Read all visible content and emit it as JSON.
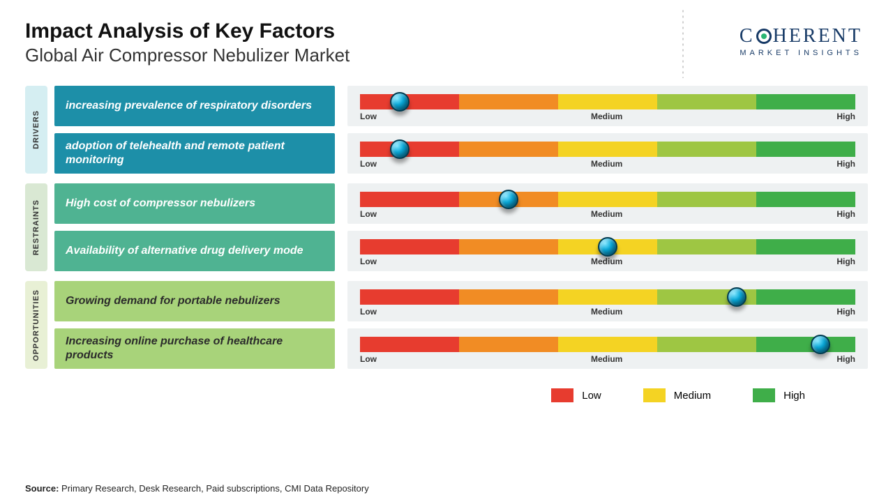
{
  "header": {
    "title": "Impact Analysis of Key Factors",
    "subtitle": "Global Air Compressor Nebulizer Market"
  },
  "logo": {
    "main": "C HERENT",
    "sub": "MARKET INSIGHTS"
  },
  "scale": {
    "low": "Low",
    "medium": "Medium",
    "high": "High"
  },
  "gradient_colors": [
    "#e73c2f",
    "#f18c24",
    "#f4d323",
    "#9ec643",
    "#3fae49"
  ],
  "group_tab_colors": {
    "drivers": "#d5eef2",
    "restraints": "#d9e8d3",
    "opportunities": "#e8f0d5"
  },
  "groups": [
    {
      "key": "drivers",
      "label": "DRIVERS",
      "factor_bg": "#1d8fa8",
      "factor_color": "#ffffff",
      "rows": [
        {
          "text": "increasing prevalence of respiratory disorders",
          "knob_pct": 8
        },
        {
          "text": "adoption of telehealth and remote patient monitoring",
          "knob_pct": 8
        }
      ]
    },
    {
      "key": "restraints",
      "label": "RESTRAINTS",
      "factor_bg": "#4fb392",
      "factor_color": "#ffffff",
      "rows": [
        {
          "text": "High cost of compressor nebulizers",
          "knob_pct": 30
        },
        {
          "text": "Availability of alternative drug delivery mode",
          "knob_pct": 50
        }
      ]
    },
    {
      "key": "opportunities",
      "label": "OPPORTUNITIES",
      "factor_bg": "#a8d37a",
      "factor_color": "#2b2b2b",
      "rows": [
        {
          "text": "Growing demand for portable nebulizers",
          "knob_pct": 76
        },
        {
          "text": "Increasing online purchase of healthcare products",
          "knob_pct": 93
        }
      ]
    }
  ],
  "legend": [
    {
      "label": "Low",
      "color": "#e73c2f"
    },
    {
      "label": "Medium",
      "color": "#f4d323"
    },
    {
      "label": "High",
      "color": "#3fae49"
    }
  ],
  "source": {
    "prefix": "Source:",
    "text": " Primary Research, Desk Research, Paid subscriptions, CMI Data Repository"
  }
}
